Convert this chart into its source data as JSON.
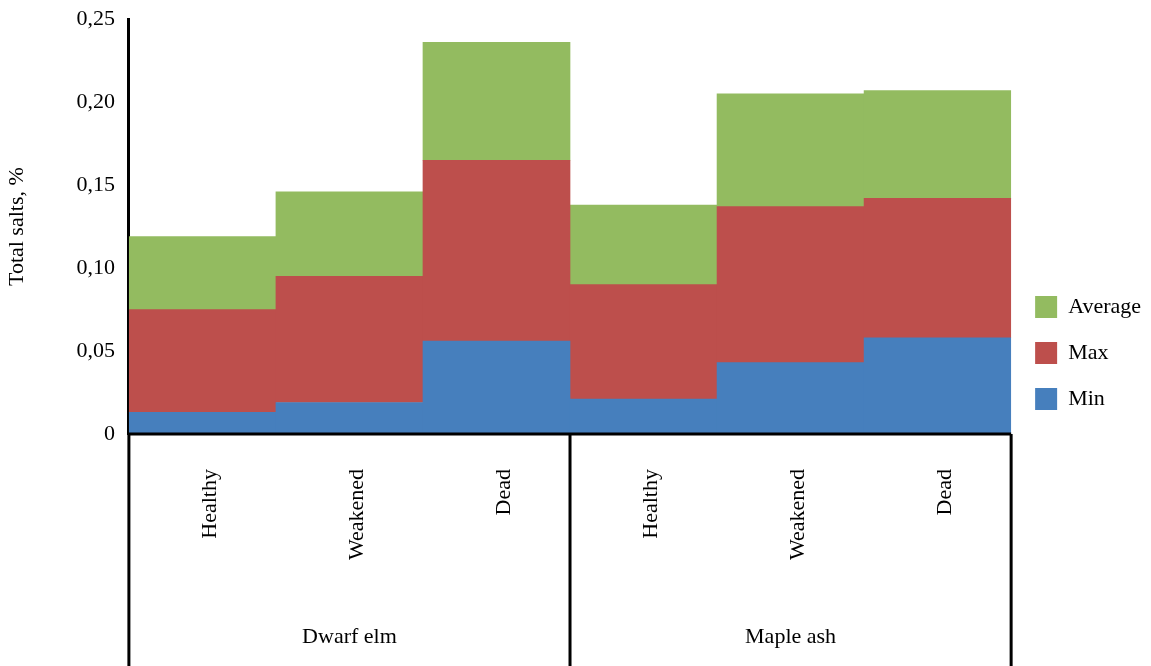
{
  "chart_data": {
    "type": "bar",
    "stacked": true,
    "ylabel": "Total salts, %",
    "categories": [
      "Healthy",
      "Weakened",
      "Dead",
      "Healthy",
      "Weakened",
      "Dead"
    ],
    "series": [
      {
        "name": "Min",
        "color": "#467fbd",
        "values": [
          0.013,
          0.019,
          0.056,
          0.021,
          0.043,
          0.058
        ]
      },
      {
        "name": "Max",
        "color": "#bd4f4c",
        "values": [
          0.062,
          0.076,
          0.109,
          0.069,
          0.094,
          0.084
        ]
      },
      {
        "name": "Average",
        "color": "#93bb60",
        "values": [
          0.044,
          0.051,
          0.071,
          0.048,
          0.068,
          0.065
        ]
      }
    ],
    "ylim": [
      0,
      0.25
    ],
    "yticks": [
      0,
      {
        "value": 0.05,
        "label": "0,05"
      },
      {
        "value": 0.1,
        "label": "0,10"
      },
      {
        "value": 0.15,
        "label": "0,15"
      },
      {
        "value": 0.2,
        "label": "0,20"
      },
      {
        "value": 0.25,
        "label": "0,25"
      }
    ],
    "annotations": [
      "Dwarf elm",
      "Maple ash"
    ],
    "legend": "right"
  }
}
